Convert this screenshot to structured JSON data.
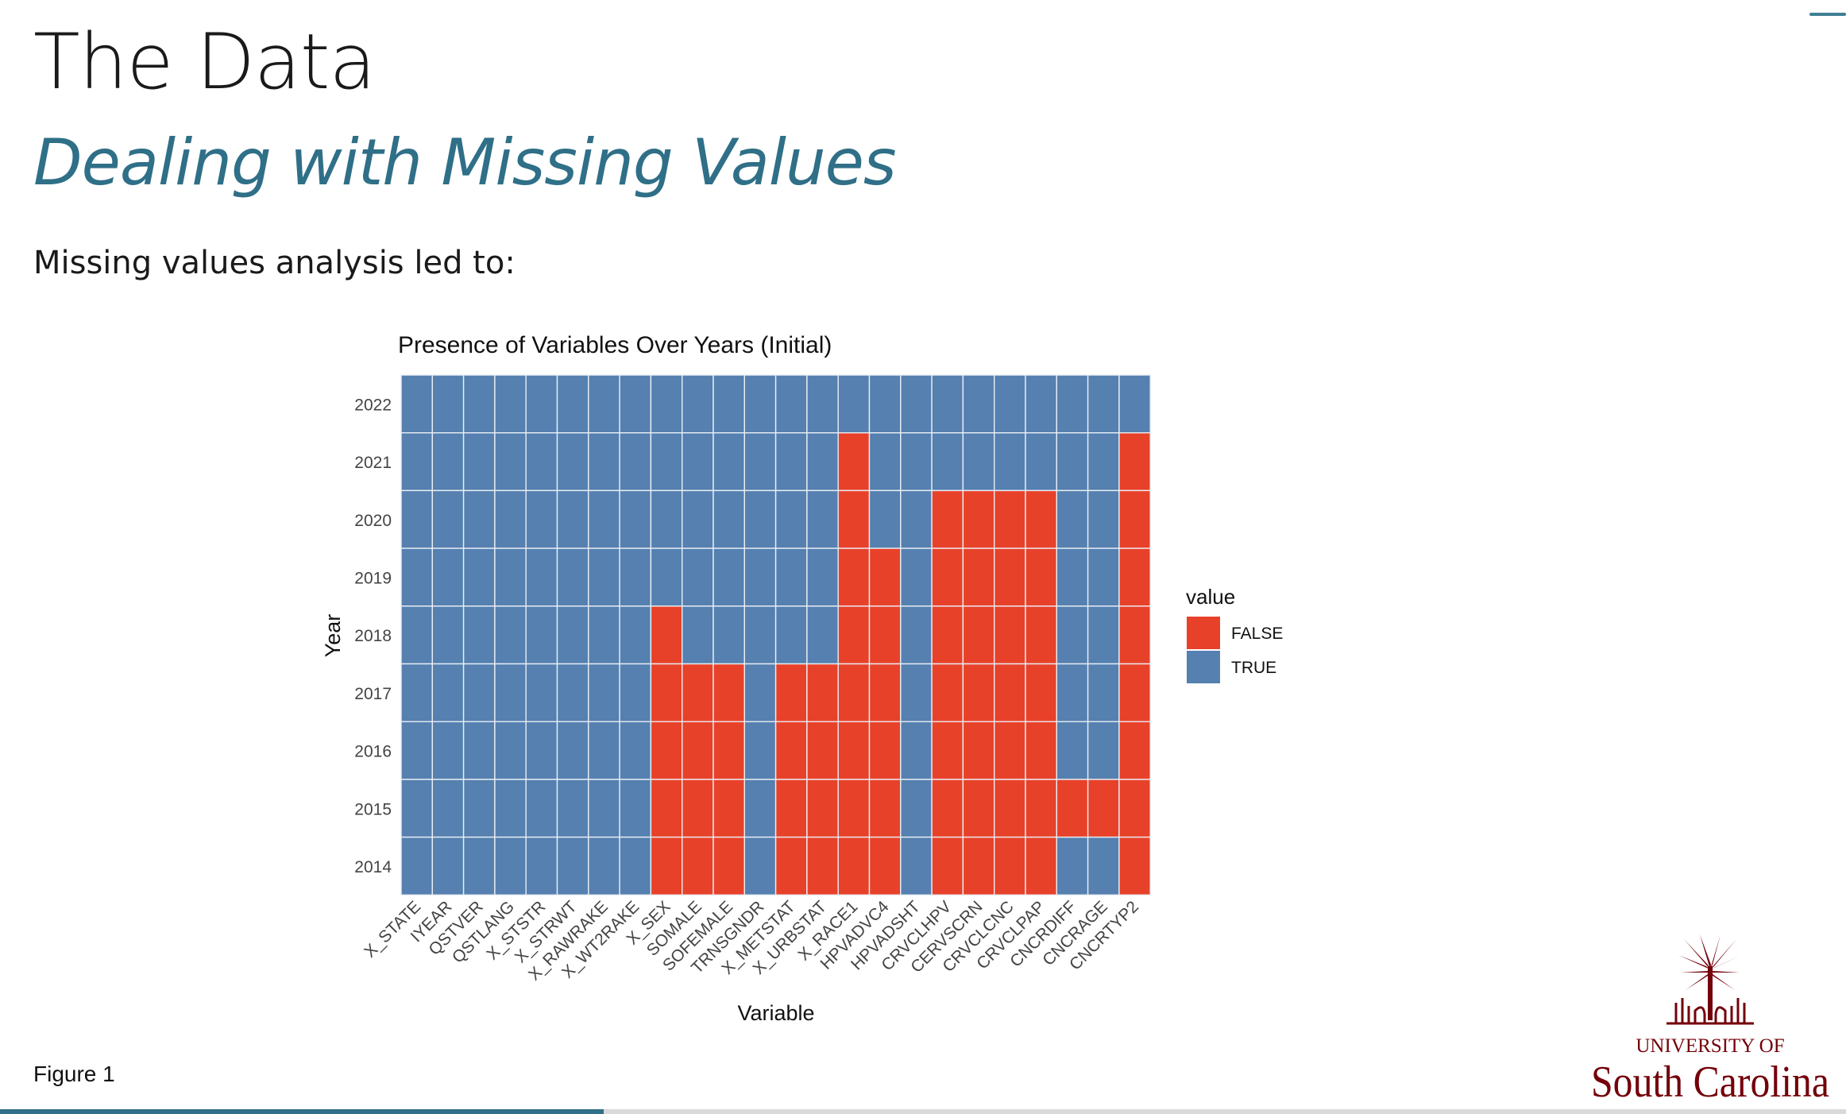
{
  "slide": {
    "title": "The Data",
    "subtitle": "Dealing with Missing Values",
    "intro": "Missing values analysis led to:",
    "caption": "Figure 1",
    "progress": 0.327
  },
  "logo": {
    "line1": "UNIVERSITY OF",
    "line2": "South Carolina",
    "color": "#73000a"
  },
  "colors": {
    "false": "#e8412a",
    "true": "#5580b0",
    "accent": "#2f6f87"
  },
  "chart_data": {
    "type": "heatmap",
    "title": "Presence of Variables Over Years (Initial)",
    "xlabel": "Variable",
    "ylabel": "Year",
    "legend_title": "value",
    "legend_position": "right",
    "legend": [
      "FALSE",
      "TRUE"
    ],
    "x": [
      "X_STATE",
      "IYEAR",
      "QSTVER",
      "QSTLANG",
      "X_STSTR",
      "X_STRWT",
      "X_RAWRAKE",
      "X_WT2RAKE",
      "X_SEX",
      "SOMALE",
      "SOFEMALE",
      "TRNSGNDR",
      "X_METSTAT",
      "X_URBSTAT",
      "X_RACE1",
      "HPVADVC4",
      "HPVADSHT",
      "CRVCLHPV",
      "CERVSCRN",
      "CRVCLCNC",
      "CRVCLPAP",
      "CNCRDIFF",
      "CNCRAGE",
      "CNCRTYP2"
    ],
    "y": [
      2022,
      2021,
      2020,
      2019,
      2018,
      2017,
      2016,
      2015,
      2014
    ],
    "present": [
      [
        true,
        true,
        true,
        true,
        true,
        true,
        true,
        true,
        true,
        true,
        true,
        true,
        true,
        true,
        true,
        true,
        true,
        true,
        true,
        true,
        true,
        true,
        true,
        true
      ],
      [
        true,
        true,
        true,
        true,
        true,
        true,
        true,
        true,
        true,
        true,
        true,
        true,
        true,
        true,
        false,
        true,
        true,
        true,
        true,
        true,
        true,
        true,
        true,
        false
      ],
      [
        true,
        true,
        true,
        true,
        true,
        true,
        true,
        true,
        true,
        true,
        true,
        true,
        true,
        true,
        false,
        true,
        true,
        false,
        false,
        false,
        false,
        true,
        true,
        false
      ],
      [
        true,
        true,
        true,
        true,
        true,
        true,
        true,
        true,
        true,
        true,
        true,
        true,
        true,
        true,
        false,
        false,
        true,
        false,
        false,
        false,
        false,
        true,
        true,
        false
      ],
      [
        true,
        true,
        true,
        true,
        true,
        true,
        true,
        true,
        false,
        true,
        true,
        true,
        true,
        true,
        false,
        false,
        true,
        false,
        false,
        false,
        false,
        true,
        true,
        false
      ],
      [
        true,
        true,
        true,
        true,
        true,
        true,
        true,
        true,
        false,
        false,
        false,
        true,
        false,
        false,
        false,
        false,
        true,
        false,
        false,
        false,
        false,
        true,
        true,
        false
      ],
      [
        true,
        true,
        true,
        true,
        true,
        true,
        true,
        true,
        false,
        false,
        false,
        true,
        false,
        false,
        false,
        false,
        true,
        false,
        false,
        false,
        false,
        true,
        true,
        false
      ],
      [
        true,
        true,
        true,
        true,
        true,
        true,
        true,
        true,
        false,
        false,
        false,
        true,
        false,
        false,
        false,
        false,
        true,
        false,
        false,
        false,
        false,
        false,
        false,
        false
      ],
      [
        true,
        true,
        true,
        true,
        true,
        true,
        true,
        true,
        false,
        false,
        false,
        true,
        false,
        false,
        false,
        false,
        true,
        false,
        false,
        false,
        false,
        true,
        true,
        false
      ]
    ]
  }
}
